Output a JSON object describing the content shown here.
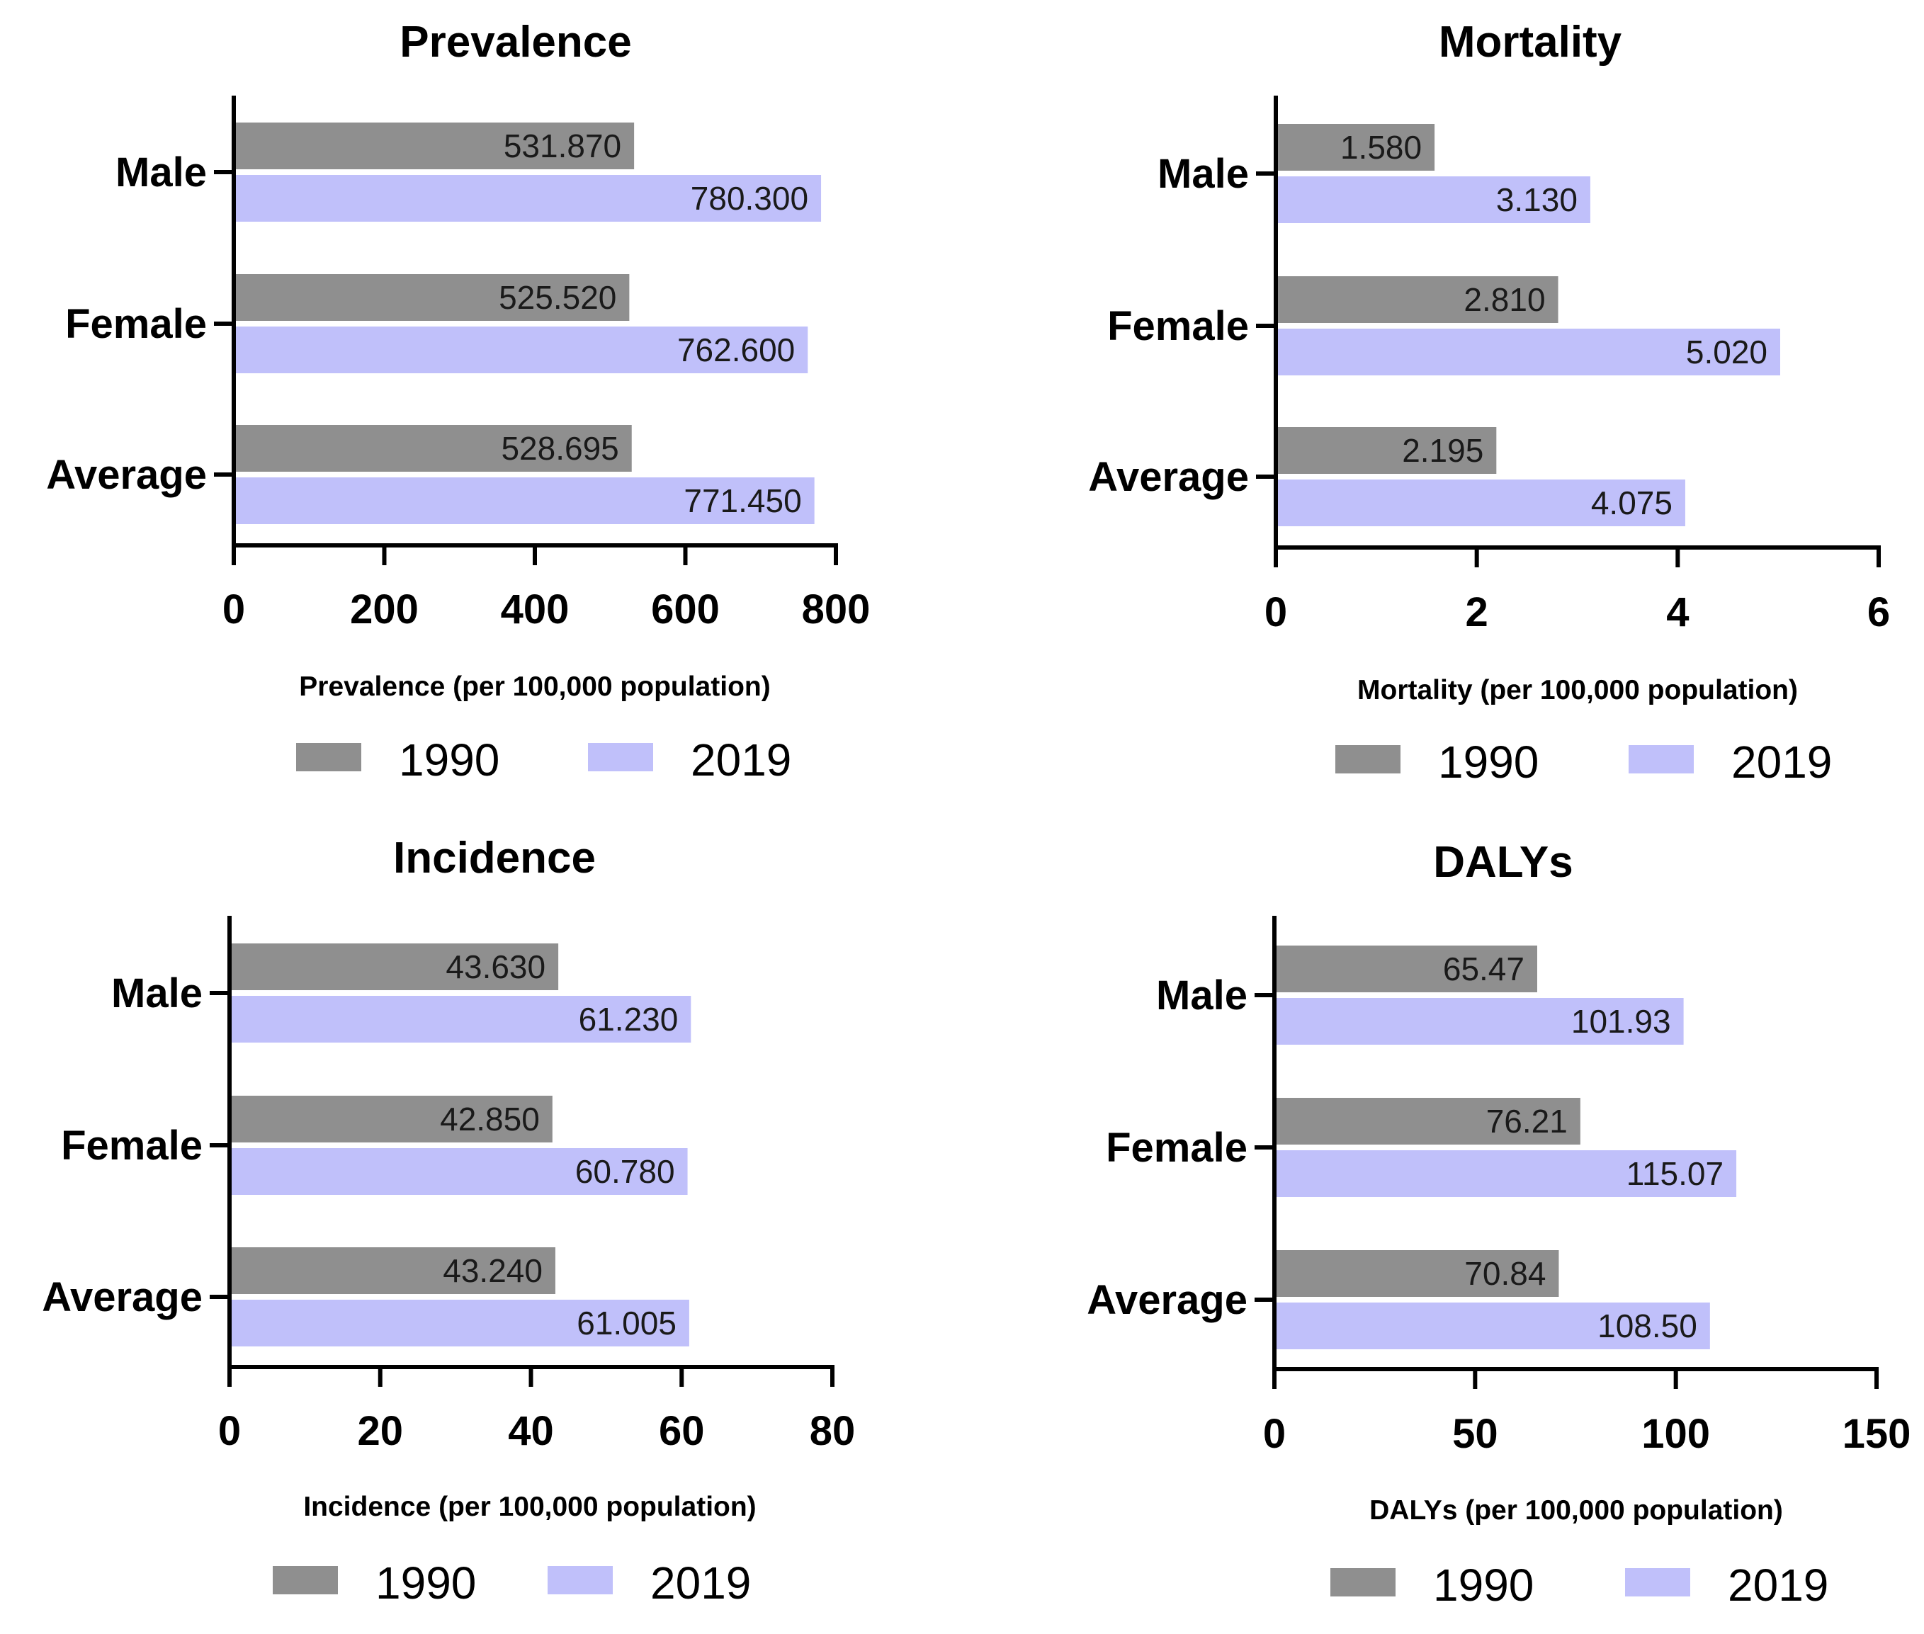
{
  "figure": {
    "colors": {
      "series_1990": "#8f8f8f",
      "series_2019": "#c0c0fa",
      "axis": "#000000",
      "text": "#000000"
    }
  },
  "chart_data": [
    {
      "type": "bar",
      "orientation": "horizontal",
      "title": "Prevalence",
      "xlabel": "Prevalence (per 100,000 population)",
      "ylabel": "",
      "categories": [
        "Male",
        "Female",
        "Average"
      ],
      "series": [
        {
          "name": "1990",
          "values": [
            531.87,
            525.52,
            528.695
          ],
          "labels": [
            "531.870",
            "525.520",
            "528.695"
          ]
        },
        {
          "name": "2019",
          "values": [
            780.3,
            762.6,
            771.45
          ],
          "labels": [
            "780.300",
            "762.600",
            "771.450"
          ]
        }
      ],
      "xlim": [
        0,
        800
      ],
      "ticks": [
        0,
        200,
        400,
        600,
        800
      ],
      "legend": [
        "1990",
        "2019"
      ],
      "legend_position": "bottom"
    },
    {
      "type": "bar",
      "orientation": "horizontal",
      "title": "Mortality",
      "xlabel": "Mortality (per 100,000 population)",
      "ylabel": "",
      "categories": [
        "Male",
        "Female",
        "Average"
      ],
      "series": [
        {
          "name": "1990",
          "values": [
            1.58,
            2.81,
            2.195
          ],
          "labels": [
            "1.580",
            "2.810",
            "2.195"
          ]
        },
        {
          "name": "2019",
          "values": [
            3.13,
            5.02,
            4.075
          ],
          "labels": [
            "3.130",
            "5.020",
            "4.075"
          ]
        }
      ],
      "xlim": [
        0,
        6
      ],
      "ticks": [
        0,
        2,
        4,
        6
      ],
      "legend": [
        "1990",
        "2019"
      ],
      "legend_position": "bottom"
    },
    {
      "type": "bar",
      "orientation": "horizontal",
      "title": "Incidence",
      "xlabel": "Incidence (per 100,000 population)",
      "ylabel": "",
      "categories": [
        "Male",
        "Female",
        "Average"
      ],
      "series": [
        {
          "name": "1990",
          "values": [
            43.63,
            42.85,
            43.24
          ],
          "labels": [
            "43.630",
            "42.850",
            "43.240"
          ]
        },
        {
          "name": "2019",
          "values": [
            61.23,
            60.78,
            61.005
          ],
          "labels": [
            "61.230",
            "60.780",
            "61.005"
          ]
        }
      ],
      "xlim": [
        0,
        80
      ],
      "ticks": [
        0,
        20,
        40,
        60,
        80
      ],
      "legend": [
        "1990",
        "2019"
      ],
      "legend_position": "bottom"
    },
    {
      "type": "bar",
      "orientation": "horizontal",
      "title": "DALYs",
      "xlabel": "DALYs  (per 100,000 population)",
      "ylabel": "",
      "categories": [
        "Male",
        "Female",
        "Average"
      ],
      "series": [
        {
          "name": "1990",
          "values": [
            65.47,
            76.21,
            70.84
          ],
          "labels": [
            "65.47",
            "76.21",
            "70.84"
          ]
        },
        {
          "name": "2019",
          "values": [
            101.93,
            115.07,
            108.5
          ],
          "labels": [
            "101.93",
            "115.07",
            "108.50"
          ]
        }
      ],
      "xlim": [
        0,
        150
      ],
      "ticks": [
        0,
        50,
        100,
        150
      ],
      "legend": [
        "1990",
        "2019"
      ],
      "legend_position": "bottom"
    }
  ]
}
